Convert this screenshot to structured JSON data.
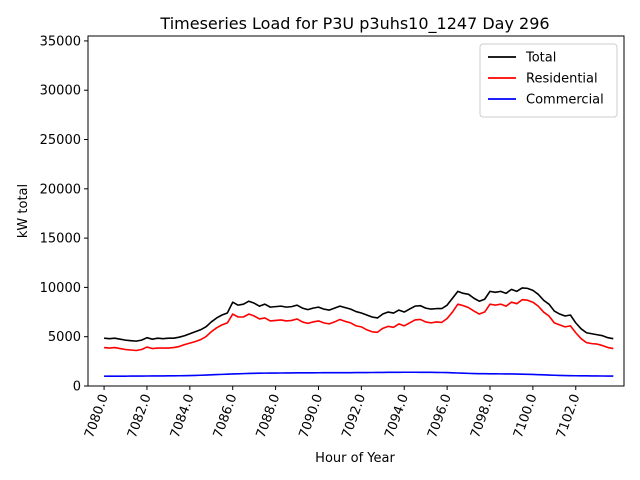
{
  "chart_data": {
    "type": "line",
    "title": "Timeseries Load for P3U p3uhs10_1247  Day 296",
    "xlabel": "Hour of Year",
    "ylabel": "kW total",
    "xlim": [
      7079.25,
      7104.25
    ],
    "ylim": [
      0,
      35500
    ],
    "x_ticks": [
      7080,
      7082,
      7084,
      7086,
      7088,
      7090,
      7092,
      7094,
      7096,
      7098,
      7100,
      7102
    ],
    "x_tick_labels": [
      "7080.0",
      "7082.0",
      "7084.0",
      "7086.0",
      "7088.0",
      "7090.0",
      "7092.0",
      "7094.0",
      "7096.0",
      "7098.0",
      "7100.0",
      "7102.0"
    ],
    "y_ticks": [
      0,
      5000,
      10000,
      15000,
      20000,
      25000,
      30000,
      35000
    ],
    "y_tick_labels": [
      "0",
      "5000",
      "10000",
      "15000",
      "20000",
      "25000",
      "30000",
      "35000"
    ],
    "legend_position": "top-right",
    "x": [
      7080,
      7080.25,
      7080.5,
      7080.75,
      7081,
      7081.25,
      7081.5,
      7081.75,
      7082,
      7082.25,
      7082.5,
      7082.75,
      7083,
      7083.25,
      7083.5,
      7083.75,
      7084,
      7084.25,
      7084.5,
      7084.75,
      7085,
      7085.25,
      7085.5,
      7085.75,
      7086,
      7086.25,
      7086.5,
      7086.75,
      7087,
      7087.25,
      7087.5,
      7087.75,
      7088,
      7088.25,
      7088.5,
      7088.75,
      7089,
      7089.25,
      7089.5,
      7089.75,
      7090,
      7090.25,
      7090.5,
      7090.75,
      7091,
      7091.25,
      7091.5,
      7091.75,
      7092,
      7092.25,
      7092.5,
      7092.75,
      7093,
      7093.25,
      7093.5,
      7093.75,
      7094,
      7094.25,
      7094.5,
      7094.75,
      7095,
      7095.25,
      7095.5,
      7095.75,
      7096,
      7096.25,
      7096.5,
      7096.75,
      7097,
      7097.25,
      7097.5,
      7097.75,
      7098,
      7098.25,
      7098.5,
      7098.75,
      7099,
      7099.25,
      7099.5,
      7099.75,
      7100,
      7100.25,
      7100.5,
      7100.75,
      7101,
      7101.25,
      7101.5,
      7101.75,
      7102,
      7102.25,
      7102.5,
      7102.75,
      7103,
      7103.25,
      7103.5,
      7103.75
    ],
    "series": [
      {
        "name": "Total",
        "color": "#000000",
        "values": [
          4850,
          4800,
          4850,
          4750,
          4650,
          4600,
          4550,
          4650,
          4900,
          4750,
          4850,
          4800,
          4850,
          4850,
          4950,
          5100,
          5300,
          5500,
          5700,
          6000,
          6500,
          6900,
          7200,
          7400,
          8500,
          8200,
          8300,
          8600,
          8400,
          8100,
          8300,
          8000,
          8050,
          8100,
          8000,
          8050,
          8200,
          7900,
          7750,
          7900,
          8000,
          7800,
          7700,
          7900,
          8100,
          7950,
          7800,
          7550,
          7400,
          7200,
          7000,
          6900,
          7300,
          7500,
          7400,
          7700,
          7500,
          7800,
          8100,
          8150,
          7900,
          7800,
          7850,
          7850,
          8200,
          8900,
          9600,
          9400,
          9300,
          8900,
          8600,
          8800,
          9600,
          9500,
          9600,
          9400,
          9800,
          9600,
          9950,
          9900,
          9700,
          9300,
          8700,
          8300,
          7600,
          7300,
          7100,
          7200,
          6400,
          5800,
          5400,
          5300,
          5200,
          5100,
          4900,
          4800
        ]
      },
      {
        "name": "Residential",
        "color": "#ff0000",
        "values": [
          3900,
          3850,
          3900,
          3800,
          3700,
          3650,
          3600,
          3700,
          3950,
          3800,
          3850,
          3850,
          3850,
          3900,
          4000,
          4200,
          4350,
          4500,
          4700,
          5000,
          5500,
          5900,
          6200,
          6400,
          7300,
          7000,
          7000,
          7300,
          7100,
          6800,
          6900,
          6600,
          6650,
          6700,
          6600,
          6650,
          6800,
          6500,
          6350,
          6500,
          6600,
          6400,
          6300,
          6500,
          6750,
          6550,
          6400,
          6100,
          6000,
          5700,
          5500,
          5450,
          5850,
          6050,
          5950,
          6300,
          6100,
          6400,
          6700,
          6750,
          6500,
          6400,
          6500,
          6450,
          6850,
          7500,
          8300,
          8150,
          7950,
          7600,
          7300,
          7500,
          8300,
          8200,
          8300,
          8100,
          8500,
          8350,
          8750,
          8700,
          8500,
          8100,
          7500,
          7100,
          6400,
          6200,
          6000,
          6100,
          5400,
          4800,
          4400,
          4300,
          4250,
          4100,
          3900,
          3800
        ]
      },
      {
        "name": "Commercial",
        "color": "#0000ff",
        "values": [
          1000,
          1000,
          1000,
          1000,
          1000,
          1005,
          1010,
          1010,
          1015,
          1020,
          1020,
          1025,
          1030,
          1035,
          1040,
          1050,
          1060,
          1075,
          1090,
          1110,
          1130,
          1155,
          1180,
          1200,
          1220,
          1240,
          1255,
          1270,
          1285,
          1295,
          1305,
          1310,
          1315,
          1320,
          1325,
          1330,
          1335,
          1338,
          1340,
          1342,
          1345,
          1346,
          1347,
          1348,
          1350,
          1352,
          1355,
          1358,
          1360,
          1365,
          1370,
          1375,
          1380,
          1385,
          1390,
          1392,
          1395,
          1395,
          1395,
          1392,
          1390,
          1385,
          1380,
          1370,
          1360,
          1340,
          1320,
          1300,
          1280,
          1260,
          1250,
          1245,
          1240,
          1235,
          1230,
          1225,
          1220,
          1210,
          1200,
          1190,
          1170,
          1150,
          1130,
          1110,
          1090,
          1075,
          1060,
          1050,
          1040,
          1035,
          1030,
          1025,
          1020,
          1015,
          1010,
          1005
        ]
      }
    ]
  }
}
